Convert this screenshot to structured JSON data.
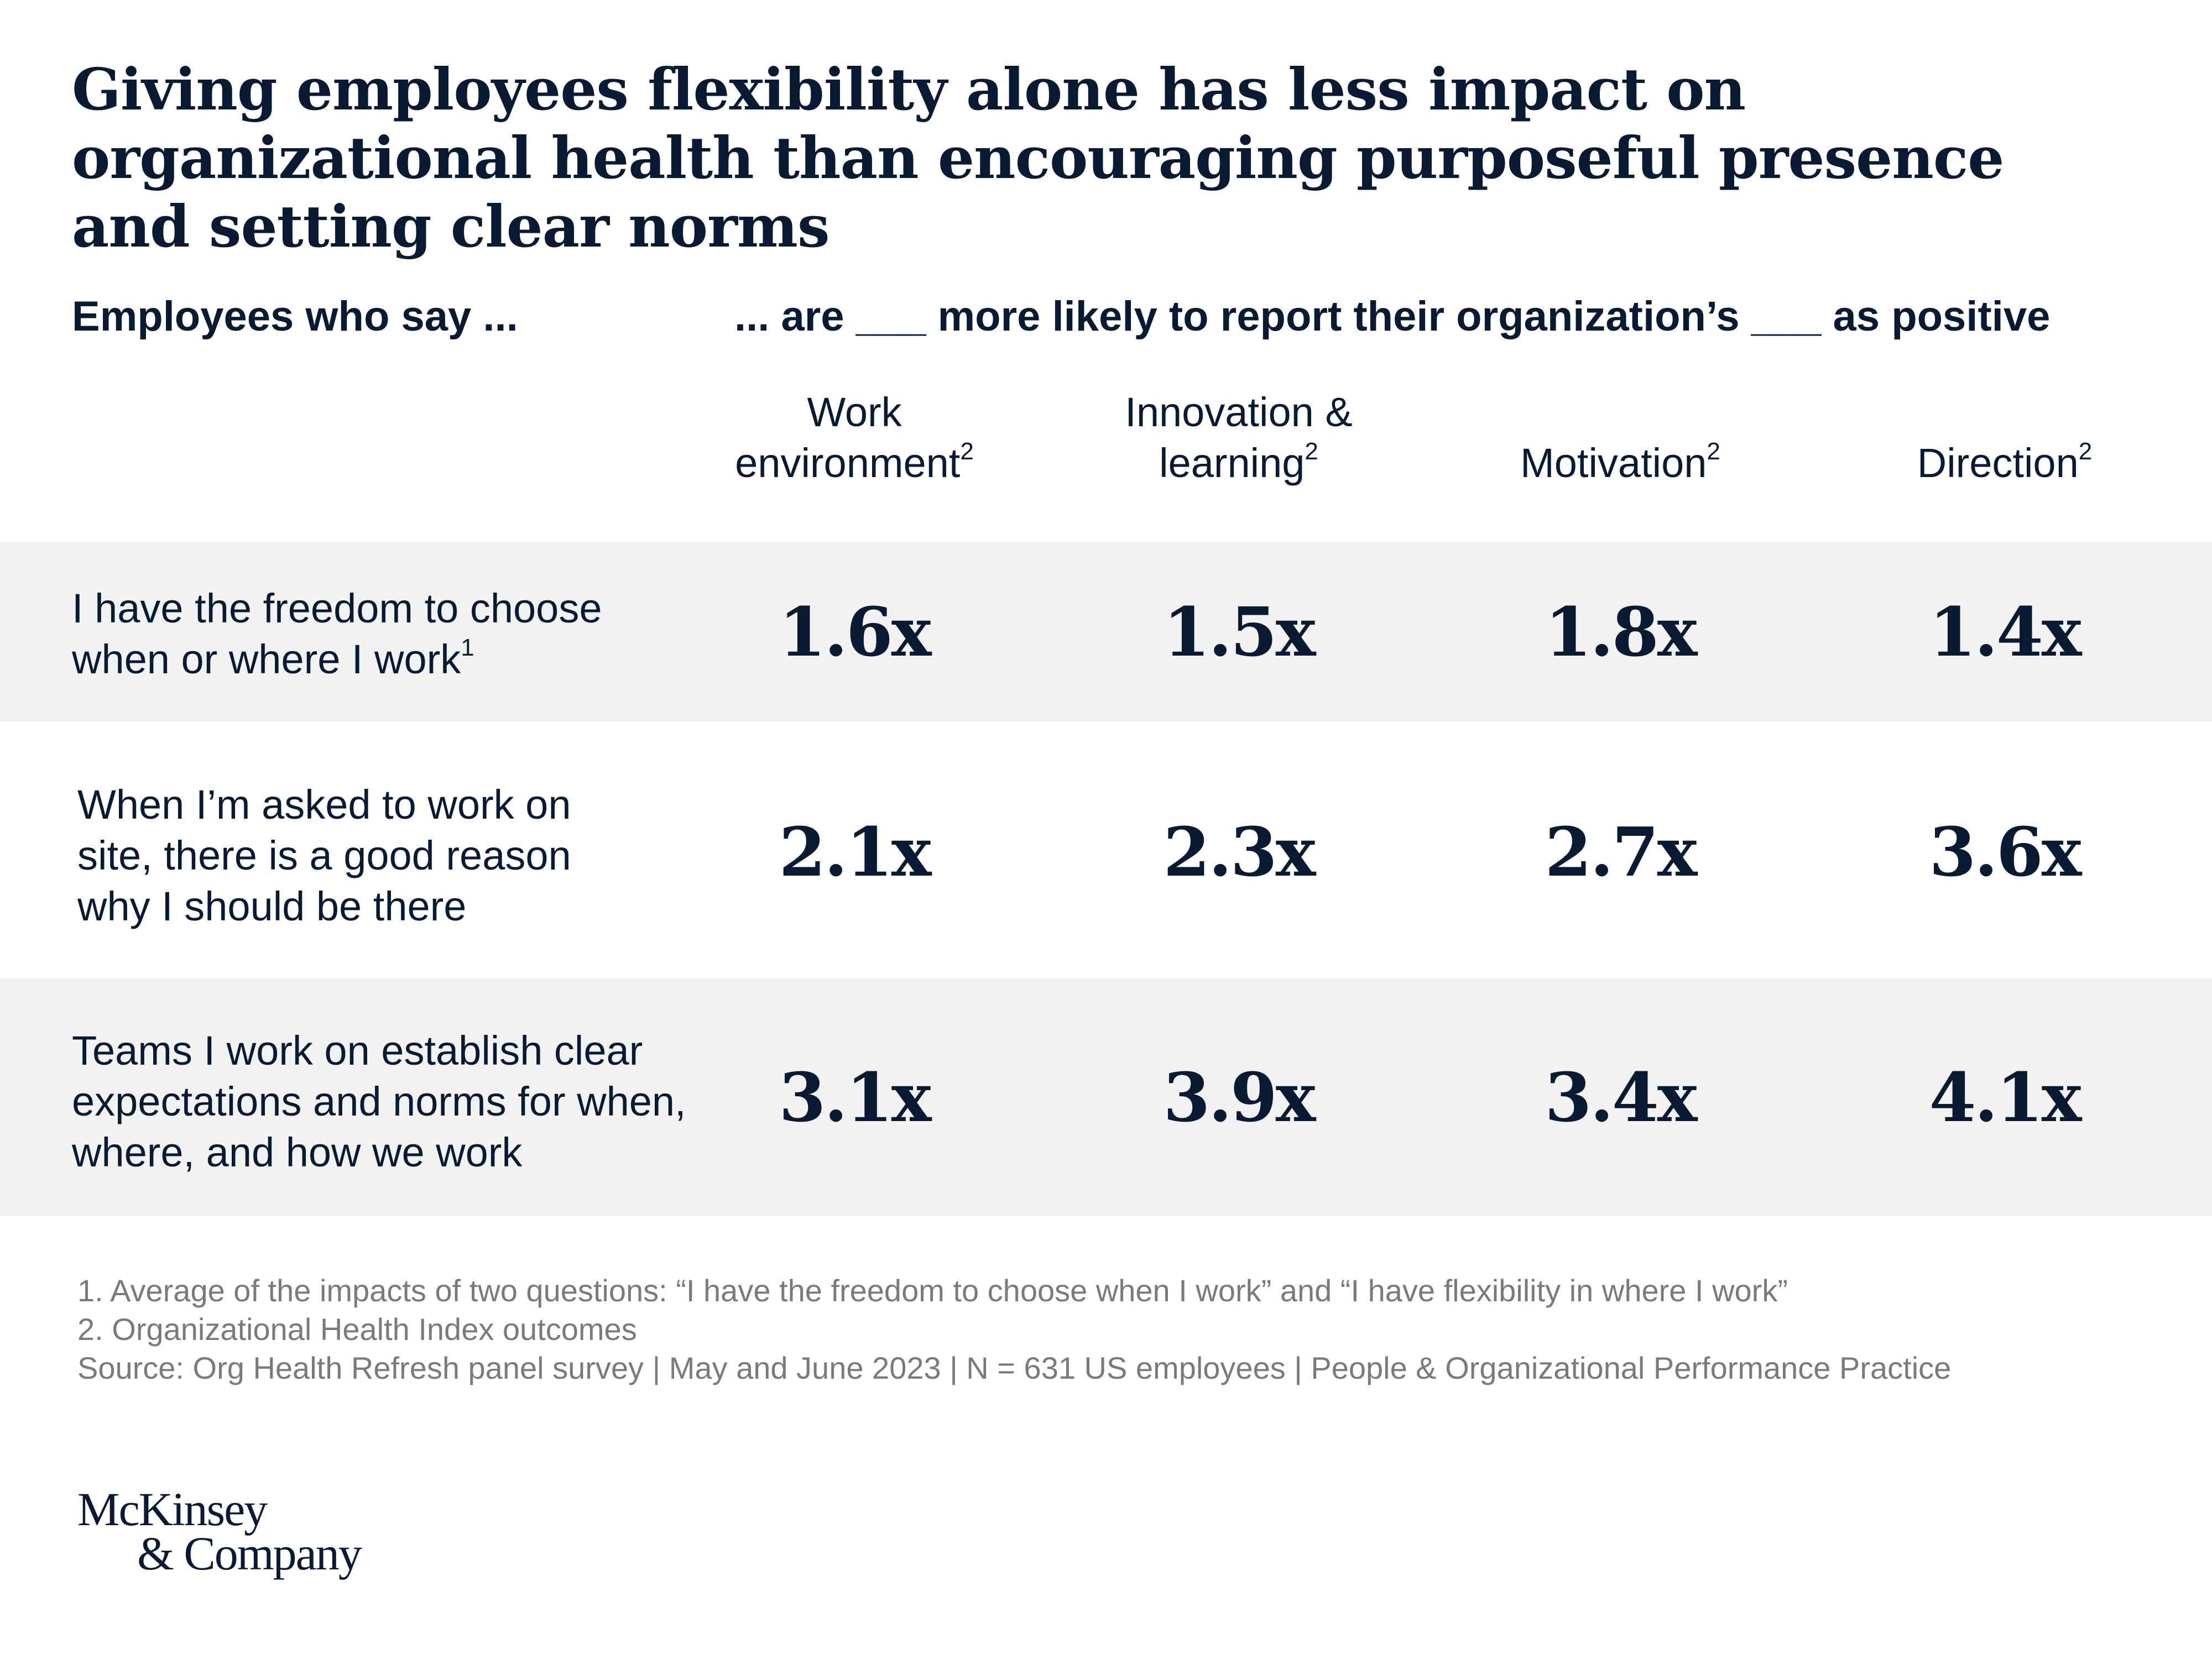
{
  "title": "Giving employees flexibility alone has less impact on organizational health than encouraging purposeful presence and setting clear norms",
  "header_left": "Employees who say ...",
  "header_right": "... are ___ more likely to report their organization’s ___ as positive",
  "columns": [
    {
      "label": "Work environment",
      "note": "2"
    },
    {
      "label": "Innovation & learning",
      "note": "2"
    },
    {
      "label": "Motivation",
      "note": "2"
    },
    {
      "label": "Direction",
      "note": "2"
    }
  ],
  "rows": [
    {
      "label": "I have the freedom to choose when or where I work",
      "note": "1"
    },
    {
      "label": "When I’m asked to work on site, there is a good reason why I should be there",
      "note": ""
    },
    {
      "label": "Teams I work on establish clear expectations and norms for when, where, and how we work",
      "note": ""
    }
  ],
  "chart_data": {
    "type": "table",
    "title": "Giving employees flexibility alone has less impact on organizational health than encouraging purposeful presence and setting clear norms",
    "columns": [
      "Work environment",
      "Innovation & learning",
      "Motivation",
      "Direction"
    ],
    "rows": [
      "I have the freedom to choose when or where I work",
      "When I’m asked to work on site, there is a good reason why I should be there",
      "Teams I work on establish clear expectations and norms for when, where, and how we work"
    ],
    "values": [
      [
        1.6,
        1.5,
        1.8,
        1.4
      ],
      [
        2.1,
        2.3,
        2.7,
        3.6
      ],
      [
        3.1,
        3.9,
        3.4,
        4.1
      ]
    ],
    "labels": [
      [
        "1.6x",
        "1.5x",
        "1.8x",
        "1.4x"
      ],
      [
        "2.1x",
        "2.3x",
        "2.7x",
        "3.6x"
      ],
      [
        "3.1x",
        "3.9x",
        "3.4x",
        "4.1x"
      ]
    ],
    "unit": "x"
  },
  "footnotes": [
    "1. Average of the impacts of two questions: “I have the freedom to choose when I work” and “I have flexibility in where I work”",
    "2. Organizational Health Index outcomes",
    "Source: Org Health Refresh panel survey | May and June 2023 | N = 631 US employees | People & Organizational Performance Practice"
  ],
  "logo": {
    "line1": "McKinsey",
    "line2": "& Company"
  }
}
